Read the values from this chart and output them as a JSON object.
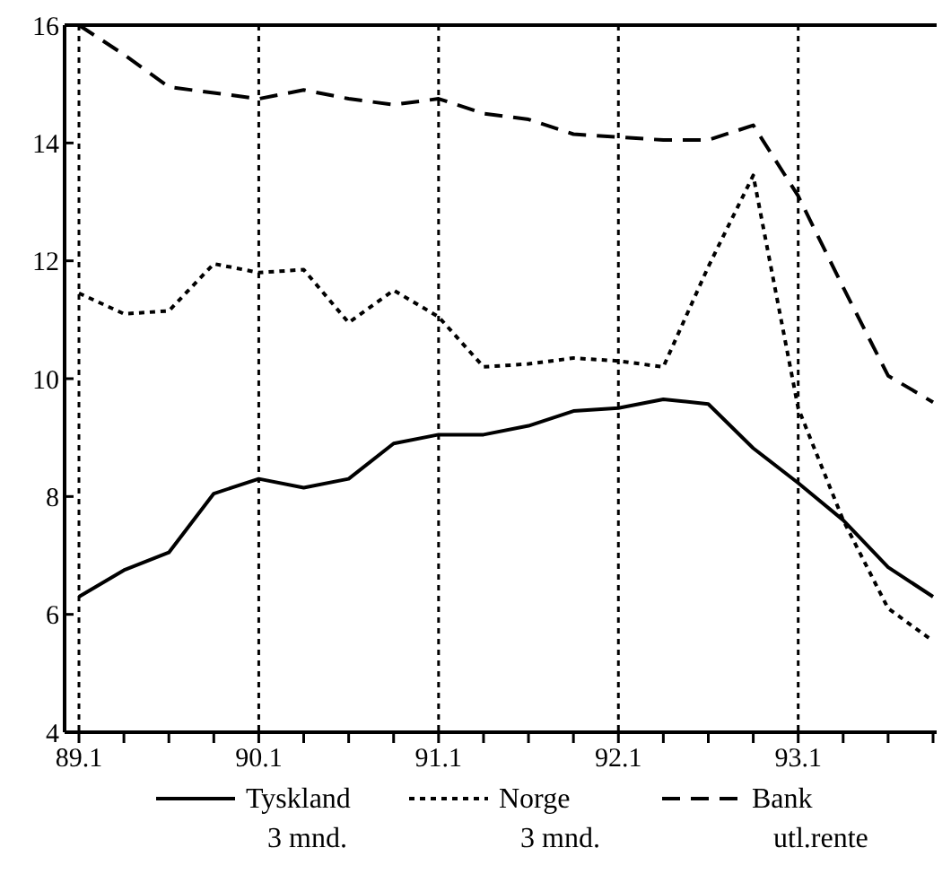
{
  "chart_data": {
    "type": "line",
    "categories": [
      "89.1",
      null,
      null,
      null,
      "90.1",
      null,
      null,
      null,
      "91.1",
      null,
      null,
      null,
      "92.1",
      null,
      null,
      null,
      "93.1",
      null,
      null,
      null
    ],
    "ylim": [
      4,
      16
    ],
    "yticks": [
      4,
      6,
      8,
      10,
      12,
      14,
      16
    ],
    "grid": "x",
    "legend": "bottom",
    "series": [
      {
        "name": "Tyskland\n3 mnd.",
        "color": "#000000",
        "line_style": "solid",
        "values": [
          6.3,
          6.75,
          7.05,
          8.05,
          8.3,
          8.15,
          8.3,
          8.9,
          9.05,
          9.05,
          9.2,
          9.45,
          9.5,
          9.65,
          9.57,
          8.82,
          8.23,
          7.6,
          6.8,
          6.3
        ]
      },
      {
        "name": "Norge\n3 mnd.",
        "color": "#000000",
        "line_style": "dotted",
        "values": [
          11.45,
          11.1,
          11.15,
          11.95,
          11.8,
          11.85,
          10.95,
          11.5,
          11.05,
          10.2,
          10.25,
          10.35,
          10.3,
          10.2,
          11.9,
          13.45,
          9.5,
          7.6,
          6.1,
          5.55
        ]
      },
      {
        "name": "Bank\nutl.rente",
        "color": "#000000",
        "line_style": "dashed",
        "values": [
          16,
          15.5,
          14.95,
          14.85,
          14.75,
          14.9,
          14.75,
          14.65,
          14.75,
          14.5,
          14.4,
          14.15,
          14.1,
          14.05,
          14.05,
          14.3,
          13.1,
          11.55,
          10.05,
          9.6
        ]
      }
    ]
  }
}
